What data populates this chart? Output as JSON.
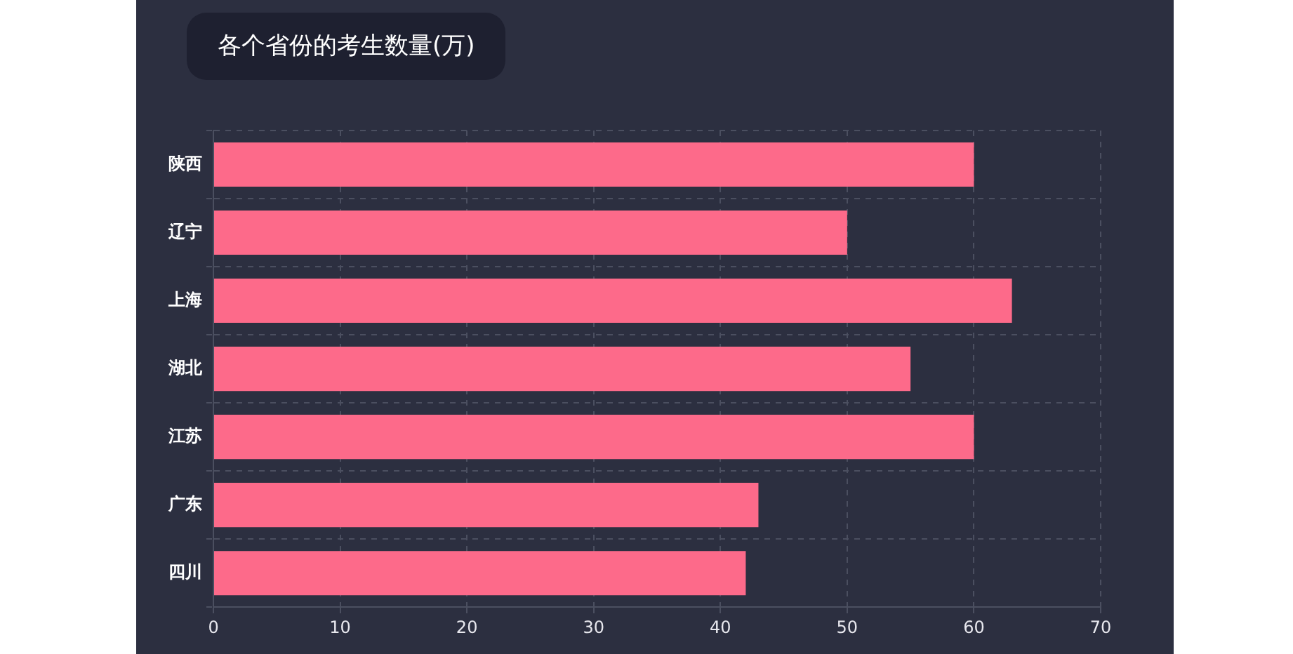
{
  "chart_data": {
    "type": "bar",
    "orientation": "horizontal",
    "title": "各个省份的考生数量(万)",
    "categories": [
      "陕西",
      "辽宁",
      "上海",
      "湖北",
      "江苏",
      "广东",
      "四川"
    ],
    "values": [
      60,
      50,
      63,
      55,
      60,
      43,
      42
    ],
    "color": "#fd6a8a",
    "xlim": [
      0,
      70
    ],
    "xticks": [
      0,
      10,
      20,
      30,
      40,
      50,
      60,
      70
    ],
    "grid": true,
    "legend": false
  }
}
